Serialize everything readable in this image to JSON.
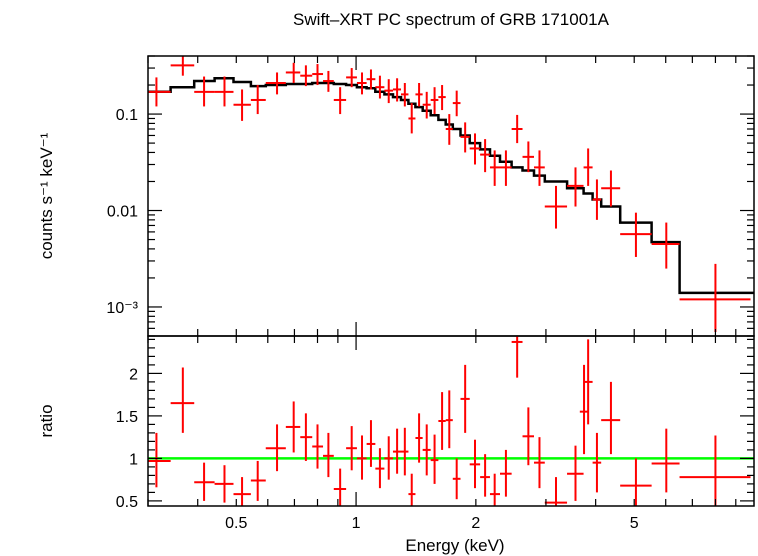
{
  "chart_data": [
    {
      "type": "scatter",
      "panel": "top",
      "title": "Swift–XRT PC spectrum of GRB 171001A",
      "xlabel": "",
      "ylabel": "counts s⁻¹ keV⁻¹",
      "x_scale": "log",
      "y_scale": "log",
      "xlim": [
        0.3,
        10.0
      ],
      "ylim": [
        0.0005,
        0.4
      ],
      "y_ticks": [
        {
          "value": 0.1,
          "label": "0.1"
        },
        {
          "value": 0.01,
          "label": "0.01"
        },
        {
          "value": 0.001,
          "label": "10⁻³"
        }
      ],
      "colors": {
        "data": "#ff0000",
        "model": "#000000"
      },
      "series": [
        {
          "kind": "data_with_errorbars",
          "points": [
            {
              "x": 0.315,
              "xlo": 0.298,
              "xhi": 0.342,
              "y": 0.17,
              "ylo": 0.12,
              "yhi": 0.24
            },
            {
              "x": 0.367,
              "xlo": 0.342,
              "xhi": 0.392,
              "y": 0.32,
              "ylo": 0.25,
              "yhi": 0.42
            },
            {
              "x": 0.415,
              "xlo": 0.392,
              "xhi": 0.441,
              "y": 0.17,
              "ylo": 0.12,
              "yhi": 0.245
            },
            {
              "x": 0.467,
              "xlo": 0.441,
              "xhi": 0.492,
              "y": 0.17,
              "ylo": 0.12,
              "yhi": 0.245
            },
            {
              "x": 0.517,
              "xlo": 0.492,
              "xhi": 0.544,
              "y": 0.125,
              "ylo": 0.085,
              "yhi": 0.18
            },
            {
              "x": 0.566,
              "xlo": 0.544,
              "xhi": 0.593,
              "y": 0.14,
              "ylo": 0.1,
              "yhi": 0.2
            },
            {
              "x": 0.633,
              "xlo": 0.593,
              "xhi": 0.666,
              "y": 0.21,
              "ylo": 0.16,
              "yhi": 0.27
            },
            {
              "x": 0.697,
              "xlo": 0.666,
              "xhi": 0.724,
              "y": 0.27,
              "ylo": 0.21,
              "yhi": 0.34
            },
            {
              "x": 0.748,
              "xlo": 0.724,
              "xhi": 0.776,
              "y": 0.25,
              "ylo": 0.195,
              "yhi": 0.32
            },
            {
              "x": 0.8,
              "xlo": 0.776,
              "xhi": 0.826,
              "y": 0.26,
              "ylo": 0.2,
              "yhi": 0.33
            },
            {
              "x": 0.852,
              "xlo": 0.826,
              "xhi": 0.879,
              "y": 0.22,
              "ylo": 0.17,
              "yhi": 0.28
            },
            {
              "x": 0.912,
              "xlo": 0.879,
              "xhi": 0.944,
              "y": 0.14,
              "ylo": 0.1,
              "yhi": 0.19
            },
            {
              "x": 0.975,
              "xlo": 0.944,
              "xhi": 1.005,
              "y": 0.24,
              "ylo": 0.19,
              "yhi": 0.3
            },
            {
              "x": 1.035,
              "xlo": 1.005,
              "xhi": 1.063,
              "y": 0.21,
              "ylo": 0.16,
              "yhi": 0.27
            },
            {
              "x": 1.09,
              "xlo": 1.063,
              "xhi": 1.118,
              "y": 0.23,
              "ylo": 0.18,
              "yhi": 0.29
            },
            {
              "x": 1.148,
              "xlo": 1.118,
              "xhi": 1.178,
              "y": 0.19,
              "ylo": 0.145,
              "yhi": 0.25
            },
            {
              "x": 1.208,
              "xlo": 1.178,
              "xhi": 1.238,
              "y": 0.175,
              "ylo": 0.13,
              "yhi": 0.23
            },
            {
              "x": 1.268,
              "xlo": 1.238,
              "xhi": 1.297,
              "y": 0.18,
              "ylo": 0.135,
              "yhi": 0.235
            },
            {
              "x": 1.326,
              "xlo": 1.297,
              "xhi": 1.354,
              "y": 0.16,
              "ylo": 0.12,
              "yhi": 0.21
            },
            {
              "x": 1.38,
              "xlo": 1.354,
              "xhi": 1.41,
              "y": 0.09,
              "ylo": 0.063,
              "yhi": 0.13
            },
            {
              "x": 1.44,
              "xlo": 1.41,
              "xhi": 1.47,
              "y": 0.16,
              "ylo": 0.12,
              "yhi": 0.21
            },
            {
              "x": 1.505,
              "xlo": 1.47,
              "xhi": 1.54,
              "y": 0.125,
              "ylo": 0.09,
              "yhi": 0.17
            },
            {
              "x": 1.575,
              "xlo": 1.54,
              "xhi": 1.61,
              "y": 0.14,
              "ylo": 0.1,
              "yhi": 0.19
            },
            {
              "x": 1.645,
              "xlo": 1.61,
              "xhi": 1.68,
              "y": 0.15,
              "ylo": 0.11,
              "yhi": 0.2
            },
            {
              "x": 1.715,
              "xlo": 1.68,
              "xhi": 1.75,
              "y": 0.07,
              "ylo": 0.048,
              "yhi": 0.1
            },
            {
              "x": 1.79,
              "xlo": 1.75,
              "xhi": 1.83,
              "y": 0.13,
              "ylo": 0.095,
              "yhi": 0.175
            },
            {
              "x": 1.88,
              "xlo": 1.83,
              "xhi": 1.93,
              "y": 0.058,
              "ylo": 0.04,
              "yhi": 0.082
            },
            {
              "x": 1.99,
              "xlo": 1.93,
              "xhi": 2.05,
              "y": 0.044,
              "ylo": 0.03,
              "yhi": 0.063
            },
            {
              "x": 2.11,
              "xlo": 2.05,
              "xhi": 2.17,
              "y": 0.038,
              "ylo": 0.025,
              "yhi": 0.055
            },
            {
              "x": 2.23,
              "xlo": 2.17,
              "xhi": 2.3,
              "y": 0.028,
              "ylo": 0.018,
              "yhi": 0.042
            },
            {
              "x": 2.38,
              "xlo": 2.3,
              "xhi": 2.46,
              "y": 0.028,
              "ylo": 0.018,
              "yhi": 0.042
            },
            {
              "x": 2.54,
              "xlo": 2.46,
              "xhi": 2.62,
              "y": 0.07,
              "ylo": 0.05,
              "yhi": 0.098
            },
            {
              "x": 2.71,
              "xlo": 2.62,
              "xhi": 2.8,
              "y": 0.036,
              "ylo": 0.025,
              "yhi": 0.052
            },
            {
              "x": 2.89,
              "xlo": 2.8,
              "xhi": 2.98,
              "y": 0.028,
              "ylo": 0.018,
              "yhi": 0.042
            },
            {
              "x": 3.18,
              "xlo": 2.98,
              "xhi": 3.39,
              "y": 0.011,
              "ylo": 0.0065,
              "yhi": 0.018
            },
            {
              "x": 3.56,
              "xlo": 3.39,
              "xhi": 3.73,
              "y": 0.018,
              "ylo": 0.011,
              "yhi": 0.028
            },
            {
              "x": 3.83,
              "xlo": 3.73,
              "xhi": 3.93,
              "y": 0.028,
              "ylo": 0.018,
              "yhi": 0.044
            },
            {
              "x": 4.03,
              "xlo": 3.93,
              "xhi": 4.13,
              "y": 0.013,
              "ylo": 0.008,
              "yhi": 0.021
            },
            {
              "x": 4.37,
              "xlo": 4.13,
              "xhi": 4.61,
              "y": 0.017,
              "ylo": 0.011,
              "yhi": 0.026
            },
            {
              "x": 5.05,
              "xlo": 4.61,
              "xhi": 5.53,
              "y": 0.0057,
              "ylo": 0.0033,
              "yhi": 0.0095
            },
            {
              "x": 6.02,
              "xlo": 5.53,
              "xhi": 6.5,
              "y": 0.0045,
              "ylo": 0.0025,
              "yhi": 0.0075
            },
            {
              "x": 8.0,
              "xlo": 6.5,
              "xhi": 9.8,
              "y": 0.0012,
              "ylo": 0.00055,
              "yhi": 0.0028
            }
          ]
        },
        {
          "kind": "model_step",
          "edges": [
            0.298,
            0.342,
            0.392,
            0.441,
            0.492,
            0.544,
            0.593,
            0.666,
            0.724,
            0.776,
            0.826,
            0.879,
            0.944,
            1.005,
            1.063,
            1.118,
            1.178,
            1.238,
            1.297,
            1.354,
            1.41,
            1.47,
            1.54,
            1.61,
            1.68,
            1.75,
            1.83,
            1.93,
            2.05,
            2.17,
            2.3,
            2.46,
            2.62,
            2.8,
            2.98,
            3.39,
            3.73,
            3.93,
            4.13,
            4.61,
            5.53,
            6.5,
            10.0
          ],
          "values": [
            0.17,
            0.19,
            0.22,
            0.235,
            0.215,
            0.195,
            0.2,
            0.205,
            0.205,
            0.21,
            0.21,
            0.205,
            0.2,
            0.19,
            0.185,
            0.17,
            0.16,
            0.15,
            0.14,
            0.128,
            0.118,
            0.108,
            0.097,
            0.087,
            0.078,
            0.07,
            0.06,
            0.05,
            0.043,
            0.037,
            0.032,
            0.028,
            0.026,
            0.023,
            0.02,
            0.017,
            0.015,
            0.013,
            0.011,
            0.0075,
            0.0047,
            0.0014
          ]
        }
      ]
    },
    {
      "type": "scatter",
      "panel": "bottom",
      "xlabel": "Energy (keV)",
      "ylabel": "ratio",
      "x_scale": "log",
      "y_scale": "linear",
      "xlim": [
        0.3,
        10.0
      ],
      "ylim": [
        0.44,
        2.44
      ],
      "x_ticks": [
        {
          "value": 0.5,
          "label": "0.5"
        },
        {
          "value": 1,
          "label": "1"
        },
        {
          "value": 2,
          "label": "2"
        },
        {
          "value": 5,
          "label": "5"
        }
      ],
      "y_ticks": [
        {
          "value": 0.5,
          "label": "0.5"
        },
        {
          "value": 1,
          "label": "1"
        },
        {
          "value": 1.5,
          "label": "1.5"
        },
        {
          "value": 2,
          "label": "2"
        }
      ],
      "reference_line": {
        "y": 1,
        "color": "#00ff00"
      },
      "colors": {
        "data": "#ff0000"
      },
      "series": [
        {
          "kind": "ratio_with_errorbars",
          "points": [
            {
              "x": 0.315,
              "xlo": 0.298,
              "xhi": 0.342,
              "y": 0.97,
              "ylo": 0.66,
              "yhi": 1.3
            },
            {
              "x": 0.367,
              "xlo": 0.342,
              "xhi": 0.392,
              "y": 1.65,
              "ylo": 1.3,
              "yhi": 2.07
            },
            {
              "x": 0.415,
              "xlo": 0.392,
              "xhi": 0.441,
              "y": 0.72,
              "ylo": 0.5,
              "yhi": 0.95
            },
            {
              "x": 0.467,
              "xlo": 0.441,
              "xhi": 0.492,
              "y": 0.7,
              "ylo": 0.48,
              "yhi": 0.92
            },
            {
              "x": 0.517,
              "xlo": 0.492,
              "xhi": 0.544,
              "y": 0.58,
              "ylo": 0.44,
              "yhi": 0.78
            },
            {
              "x": 0.566,
              "xlo": 0.544,
              "xhi": 0.593,
              "y": 0.74,
              "ylo": 0.5,
              "yhi": 0.97
            },
            {
              "x": 0.633,
              "xlo": 0.593,
              "xhi": 0.666,
              "y": 1.12,
              "ylo": 0.85,
              "yhi": 1.4
            },
            {
              "x": 0.697,
              "xlo": 0.666,
              "xhi": 0.724,
              "y": 1.37,
              "ylo": 1.07,
              "yhi": 1.67
            },
            {
              "x": 0.748,
              "xlo": 0.724,
              "xhi": 0.776,
              "y": 1.25,
              "ylo": 0.97,
              "yhi": 1.53
            },
            {
              "x": 0.8,
              "xlo": 0.776,
              "xhi": 0.826,
              "y": 1.14,
              "ylo": 0.88,
              "yhi": 1.4
            },
            {
              "x": 0.852,
              "xlo": 0.826,
              "xhi": 0.879,
              "y": 1.03,
              "ylo": 0.78,
              "yhi": 1.3
            },
            {
              "x": 0.912,
              "xlo": 0.879,
              "xhi": 0.944,
              "y": 0.64,
              "ylo": 0.44,
              "yhi": 0.88
            },
            {
              "x": 0.975,
              "xlo": 0.944,
              "xhi": 1.005,
              "y": 1.12,
              "ylo": 0.86,
              "yhi": 1.38
            },
            {
              "x": 1.035,
              "xlo": 1.005,
              "xhi": 1.063,
              "y": 1.0,
              "ylo": 0.75,
              "yhi": 1.27
            },
            {
              "x": 1.09,
              "xlo": 1.063,
              "xhi": 1.118,
              "y": 1.17,
              "ylo": 0.9,
              "yhi": 1.45
            },
            {
              "x": 1.148,
              "xlo": 1.118,
              "xhi": 1.178,
              "y": 0.88,
              "ylo": 0.65,
              "yhi": 1.12
            },
            {
              "x": 1.208,
              "xlo": 1.178,
              "xhi": 1.238,
              "y": 1.0,
              "ylo": 0.75,
              "yhi": 1.26
            },
            {
              "x": 1.268,
              "xlo": 1.238,
              "xhi": 1.297,
              "y": 1.08,
              "ylo": 0.82,
              "yhi": 1.35
            },
            {
              "x": 1.326,
              "xlo": 1.297,
              "xhi": 1.354,
              "y": 1.08,
              "ylo": 0.8,
              "yhi": 1.36
            },
            {
              "x": 1.38,
              "xlo": 1.354,
              "xhi": 1.41,
              "y": 0.58,
              "ylo": 0.44,
              "yhi": 0.82
            },
            {
              "x": 1.44,
              "xlo": 1.41,
              "xhi": 1.47,
              "y": 1.24,
              "ylo": 0.95,
              "yhi": 1.53
            },
            {
              "x": 1.505,
              "xlo": 1.47,
              "xhi": 1.54,
              "y": 1.1,
              "ylo": 0.8,
              "yhi": 1.4
            },
            {
              "x": 1.575,
              "xlo": 1.54,
              "xhi": 1.61,
              "y": 0.98,
              "ylo": 0.7,
              "yhi": 1.28
            },
            {
              "x": 1.645,
              "xlo": 1.61,
              "xhi": 1.68,
              "y": 1.44,
              "ylo": 1.1,
              "yhi": 1.78
            },
            {
              "x": 1.715,
              "xlo": 1.68,
              "xhi": 1.75,
              "y": 1.45,
              "ylo": 1.12,
              "yhi": 1.8
            },
            {
              "x": 1.79,
              "xlo": 1.75,
              "xhi": 1.83,
              "y": 0.76,
              "ylo": 0.52,
              "yhi": 1.0
            },
            {
              "x": 1.88,
              "xlo": 1.83,
              "xhi": 1.93,
              "y": 1.7,
              "ylo": 1.3,
              "yhi": 2.1
            },
            {
              "x": 1.99,
              "xlo": 1.93,
              "xhi": 2.05,
              "y": 0.93,
              "ylo": 0.65,
              "yhi": 1.22
            },
            {
              "x": 2.11,
              "xlo": 2.05,
              "xhi": 2.17,
              "y": 0.78,
              "ylo": 0.55,
              "yhi": 1.05
            },
            {
              "x": 2.23,
              "xlo": 2.17,
              "xhi": 2.3,
              "y": 0.58,
              "ylo": 0.44,
              "yhi": 0.82
            },
            {
              "x": 2.38,
              "xlo": 2.3,
              "xhi": 2.46,
              "y": 0.82,
              "ylo": 0.55,
              "yhi": 1.1
            },
            {
              "x": 2.54,
              "xlo": 2.46,
              "xhi": 2.62,
              "y": 2.37,
              "ylo": 1.95,
              "yhi": 2.44
            },
            {
              "x": 2.71,
              "xlo": 2.62,
              "xhi": 2.8,
              "y": 1.26,
              "ylo": 0.92,
              "yhi": 1.6
            },
            {
              "x": 2.89,
              "xlo": 2.8,
              "xhi": 2.98,
              "y": 0.95,
              "ylo": 0.65,
              "yhi": 1.25
            },
            {
              "x": 3.18,
              "xlo": 2.98,
              "xhi": 3.39,
              "y": 0.48,
              "ylo": 0.44,
              "yhi": 0.78
            },
            {
              "x": 3.56,
              "xlo": 3.39,
              "xhi": 3.73,
              "y": 0.82,
              "ylo": 0.5,
              "yhi": 1.15
            },
            {
              "x": 3.74,
              "xlo": 3.65,
              "xhi": 3.83,
              "y": 1.55,
              "ylo": 1.05,
              "yhi": 2.1
            },
            {
              "x": 3.83,
              "xlo": 3.75,
              "xhi": 3.93,
              "y": 1.9,
              "ylo": 1.4,
              "yhi": 2.4
            },
            {
              "x": 4.03,
              "xlo": 3.93,
              "xhi": 4.13,
              "y": 0.95,
              "ylo": 0.6,
              "yhi": 1.3
            },
            {
              "x": 4.37,
              "xlo": 4.13,
              "xhi": 4.61,
              "y": 1.45,
              "ylo": 1.05,
              "yhi": 1.9
            },
            {
              "x": 5.05,
              "xlo": 4.61,
              "xhi": 5.53,
              "y": 0.68,
              "ylo": 0.44,
              "yhi": 1.0
            },
            {
              "x": 6.02,
              "xlo": 5.53,
              "xhi": 6.5,
              "y": 0.94,
              "ylo": 0.6,
              "yhi": 1.35
            },
            {
              "x": 8.0,
              "xlo": 6.5,
              "xhi": 9.8,
              "y": 0.78,
              "ylo": 0.44,
              "yhi": 1.27
            }
          ]
        }
      ]
    }
  ]
}
